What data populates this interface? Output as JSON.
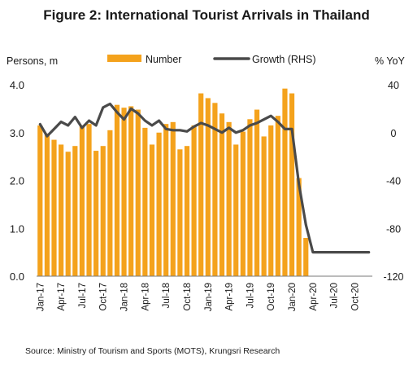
{
  "title": "Figure 2: International Tourist Arrivals in Thailand",
  "source": "Source: Ministry of Tourism and Sports (MOTS), Krungsri Research",
  "chart_data": {
    "type": "bar+line",
    "left_axis_title": "Persons, m",
    "right_axis_title": "% YoY",
    "ylim_left": [
      0,
      4
    ],
    "ylim_right": [
      -120,
      40
    ],
    "yticks_left": [
      "0.0",
      "1.0",
      "2.0",
      "3.0",
      "4.0"
    ],
    "yticks_right": [
      "-120",
      "-80",
      "-40",
      "0",
      "40"
    ],
    "xticks": [
      "Jan-17",
      "Apr-17",
      "Jul-17",
      "Oct-17",
      "Jan-18",
      "Apr-18",
      "Jul-18",
      "Oct-18",
      "Jan-19",
      "Apr-19",
      "Jul-19",
      "Oct-19",
      "Jan-20",
      "Apr-20",
      "Jul-20",
      "Oct-20"
    ],
    "legend_position": "top",
    "grid": false,
    "colors": {
      "bar": "#f4a21c",
      "line": "#4a4a4a"
    },
    "series": [
      {
        "name": "Number",
        "kind": "bar",
        "axis": "left",
        "values": [
          3.15,
          2.98,
          2.85,
          2.75,
          2.6,
          2.72,
          3.15,
          3.18,
          2.62,
          2.72,
          3.05,
          3.58,
          3.52,
          3.55,
          3.48,
          3.1,
          2.75,
          3.0,
          3.18,
          3.22,
          2.65,
          2.72,
          3.15,
          3.82,
          3.72,
          3.62,
          3.4,
          3.22,
          2.75,
          3.02,
          3.28,
          3.48,
          2.92,
          3.15,
          3.35,
          3.92,
          3.82,
          2.05,
          0.8,
          0.0,
          0.0,
          0.0,
          0.0,
          0.0,
          0.0,
          0.0,
          0.0,
          0.0
        ]
      },
      {
        "name": "Growth (RHS)",
        "kind": "line",
        "axis": "right",
        "values": [
          7,
          -3,
          3,
          9,
          6,
          13,
          4,
          10,
          6,
          21,
          24,
          17,
          11,
          20,
          16,
          10,
          6,
          10,
          3,
          2,
          2,
          1,
          5,
          8,
          6,
          3,
          0,
          4,
          0,
          2,
          6,
          8,
          11,
          14,
          9,
          3,
          3,
          -43,
          -77,
          -100,
          -100,
          -100,
          -100,
          -100,
          -100,
          -100,
          -100,
          -100
        ]
      }
    ]
  }
}
